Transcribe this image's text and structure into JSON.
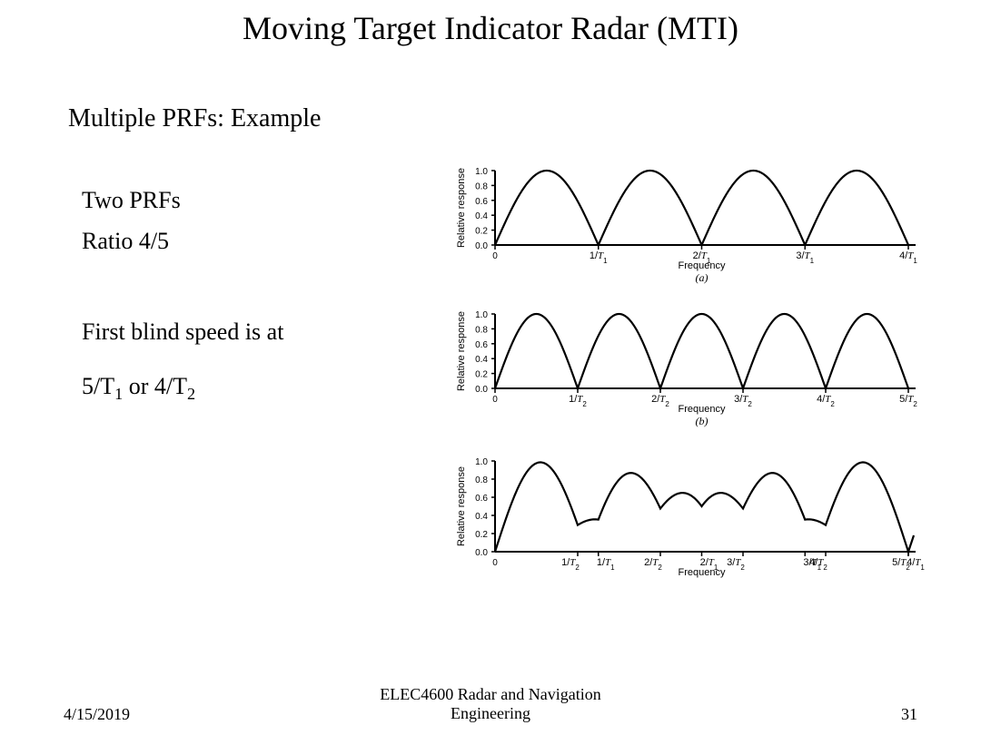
{
  "title": "Moving Target Indicator Radar (MTI)",
  "subtitle": "Multiple PRFs:   Example",
  "body": {
    "line1": "Two PRFs",
    "line2": "Ratio 4/5",
    "line3": "First blind speed is at",
    "line4_html": "5/T<sub>1</sub> or 4/T<sub>2</sub>"
  },
  "footer": {
    "date": "4/15/2019",
    "course_line1": "ELEC4600 Radar and Navigation",
    "course_line2": "Engineering",
    "page": "31"
  },
  "charts": {
    "colors": {
      "line": "#000000",
      "bg": "#ffffff"
    },
    "panelA": {
      "type": "line",
      "ylabel": "Relative response",
      "xlabel": "Frequency",
      "sublabel": "(a)",
      "ylim": [
        0,
        1.0
      ],
      "yticks": [
        0,
        0.2,
        0.4,
        0.6,
        0.8,
        1.0
      ],
      "xlim": [
        0,
        4
      ],
      "xticks": [
        0,
        1,
        2,
        3,
        4
      ],
      "xtick_labels_html": [
        "0",
        "1/<i>T</i><sub>1</sub>",
        "2/<i>T</i><sub>1</sub>",
        "3/<i>T</i><sub>1</sub>",
        "4/<i>T</i><sub>1</sub>"
      ],
      "lobes": 4,
      "line_width": 2.2
    },
    "panelB": {
      "type": "line",
      "ylabel": "Relative response",
      "xlabel": "Frequency",
      "sublabel": "(b)",
      "ylim": [
        0,
        1.0
      ],
      "yticks": [
        0,
        0.2,
        0.4,
        0.6,
        0.8,
        1.0
      ],
      "xlim": [
        0,
        5
      ],
      "xticks": [
        0,
        1,
        2,
        3,
        4,
        5
      ],
      "xtick_labels_html": [
        "0",
        "1/<i>T</i><sub>2</sub>",
        "2/<i>T</i><sub>2</sub>",
        "3/<i>T</i><sub>2</sub>",
        "4/<i>T</i><sub>2</sub>",
        "5/<i>T</i><sub>2</sub>"
      ],
      "lobes": 5,
      "line_width": 2.2
    },
    "panelC": {
      "type": "line",
      "ylabel": "Relative response",
      "xlabel": "Frequency",
      "ylim": [
        0,
        1.0
      ],
      "yticks": [
        0,
        0.2,
        0.4,
        0.6,
        0.8,
        1.0
      ],
      "xlim": [
        0,
        20
      ],
      "xticks_T2": [
        4,
        8,
        12,
        16,
        20
      ],
      "xticks_T1": [
        5,
        10,
        15,
        20
      ],
      "xtick_labels_T2": [
        "1/T₂",
        "2/T₂",
        "3/T₂",
        "4/T₂",
        "5/T₂"
      ],
      "xtick_labels_T1": [
        "1/T₁",
        "2/T₁",
        "3/T₁",
        "4/T₁"
      ],
      "lobe_peaks_approx": [
        1.0,
        0.35,
        0.85,
        0.4,
        0.6,
        0.6,
        0.4,
        0.85,
        0.35,
        1.0
      ],
      "line_width": 2.2
    }
  }
}
